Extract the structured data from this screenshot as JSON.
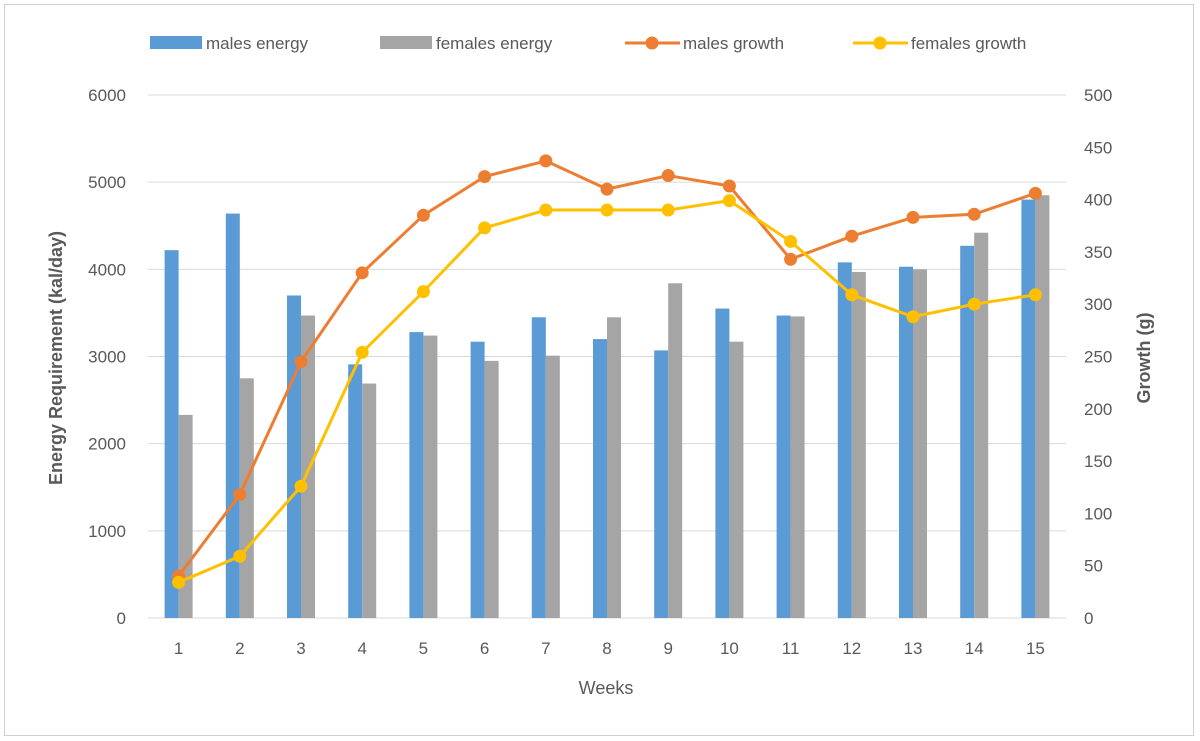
{
  "chart_data": {
    "type": "bar",
    "title": "",
    "categories": [
      "1",
      "2",
      "3",
      "4",
      "5",
      "6",
      "7",
      "8",
      "9",
      "10",
      "11",
      "12",
      "13",
      "14",
      "15"
    ],
    "xlabel": "Weeks",
    "ylabel": "Energy Requirement (kal/day)",
    "y2label": "Growth (g)",
    "ylim": [
      0,
      6000
    ],
    "y2lim": [
      0,
      500
    ],
    "yticks": [
      "0",
      "1000",
      "2000",
      "3000",
      "4000",
      "5000",
      "6000"
    ],
    "y2ticks": [
      "0",
      "50",
      "100",
      "150",
      "200",
      "250",
      "300",
      "350",
      "400",
      "450",
      "500"
    ],
    "grid": true,
    "legend_position": "top",
    "series": [
      {
        "name": "males energy",
        "kind": "bar",
        "axis": "left",
        "color": "#5b9bd5",
        "values": [
          4220,
          4640,
          3700,
          2910,
          3280,
          3170,
          3450,
          3200,
          3070,
          3550,
          3470,
          4080,
          4030,
          4270,
          4800
        ]
      },
      {
        "name": "females energy",
        "kind": "bar",
        "axis": "left",
        "color": "#a5a5a5",
        "values": [
          2330,
          2750,
          3470,
          2690,
          3240,
          2950,
          3010,
          3450,
          3840,
          3170,
          3460,
          3970,
          4000,
          4420,
          4850
        ]
      },
      {
        "name": "males growth",
        "kind": "line",
        "axis": "right",
        "color": "#ed7d31",
        "values": [
          40,
          118,
          245,
          330,
          385,
          422,
          437,
          410,
          423,
          413,
          343,
          365,
          383,
          386,
          406
        ]
      },
      {
        "name": "females growth",
        "kind": "line",
        "axis": "right",
        "color": "#ffc000",
        "values": [
          34,
          59,
          126,
          254,
          312,
          373,
          390,
          390,
          390,
          399,
          360,
          309,
          288,
          300,
          309
        ]
      }
    ]
  }
}
